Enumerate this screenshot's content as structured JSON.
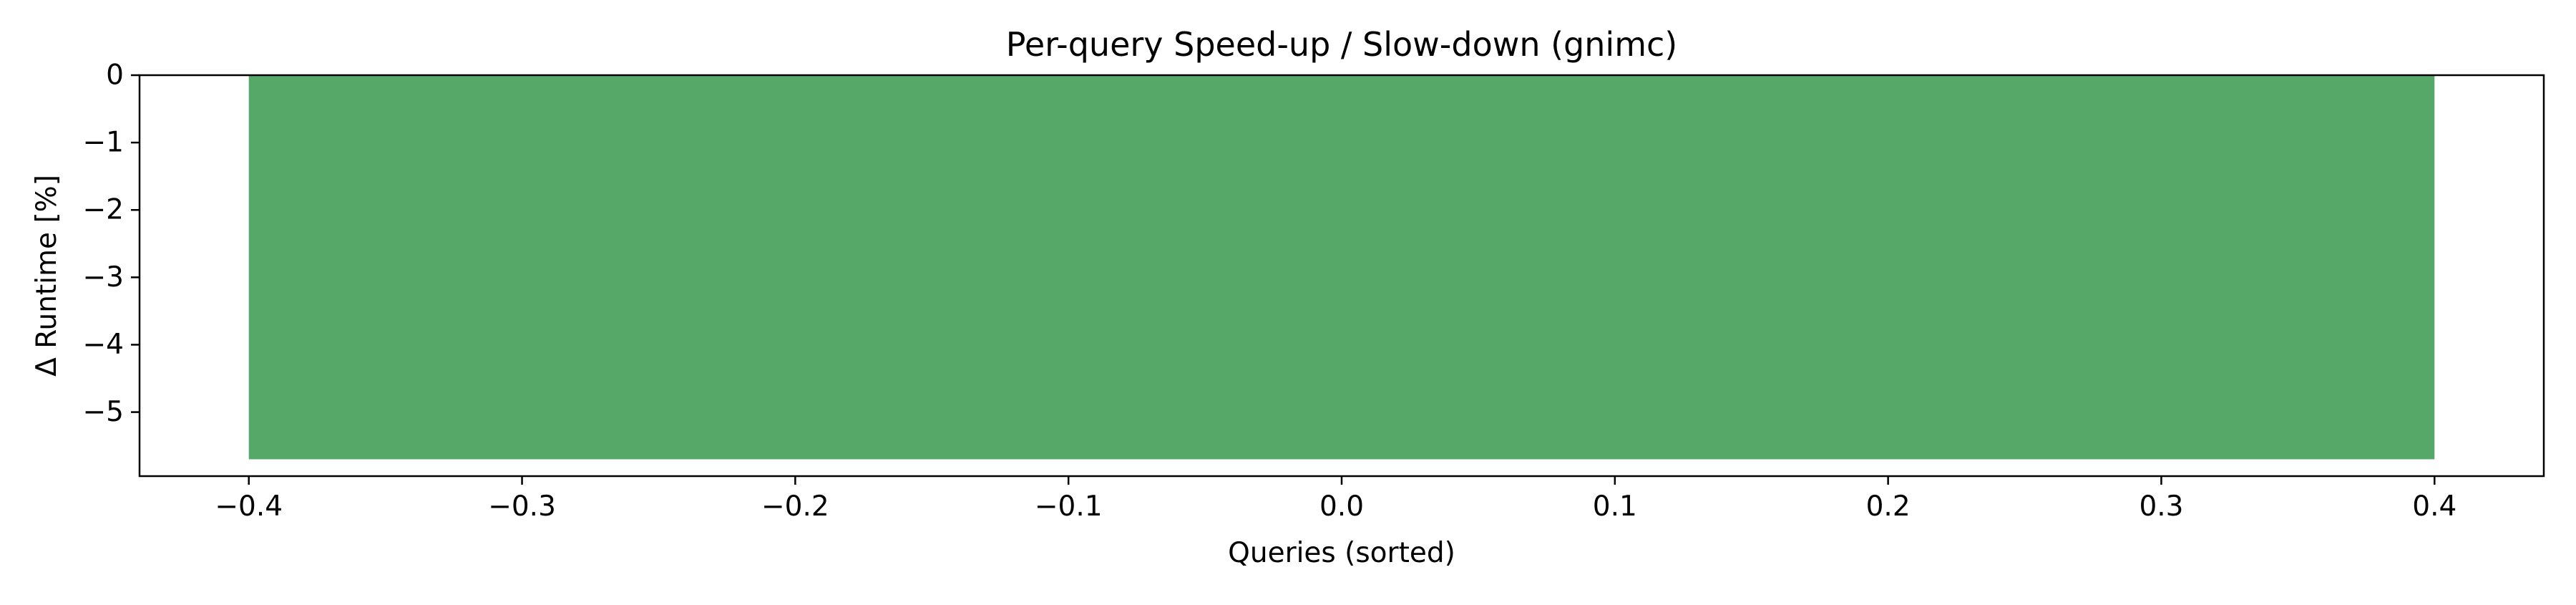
{
  "chart_data": {
    "type": "bar",
    "title": "Per-query Speed-up / Slow-down  (gnimc)",
    "xlabel": "Queries (sorted)",
    "ylabel": "Δ Runtime [%]",
    "x": [
      0
    ],
    "values": [
      -5.7
    ],
    "bar_width": 0.8,
    "xlim": [
      -0.44,
      0.44
    ],
    "ylim": [
      -5.95,
      0.0
    ],
    "xticks": [
      -0.4,
      -0.3,
      -0.2,
      -0.1,
      0.0,
      0.1,
      0.2,
      0.3,
      0.4
    ],
    "xtick_labels": [
      "−0.4",
      "−0.3",
      "−0.2",
      "−0.1",
      "0.0",
      "0.1",
      "0.2",
      "0.3",
      "0.4"
    ],
    "yticks": [
      0,
      -1,
      -2,
      -3,
      -4,
      -5
    ],
    "ytick_labels": [
      "0",
      "−1",
      "−2",
      "−3",
      "−4",
      "−5"
    ],
    "grid": false,
    "legend": "none",
    "colors": {
      "bar": "#55a868",
      "axis": "#000000",
      "background": "#ffffff"
    }
  }
}
